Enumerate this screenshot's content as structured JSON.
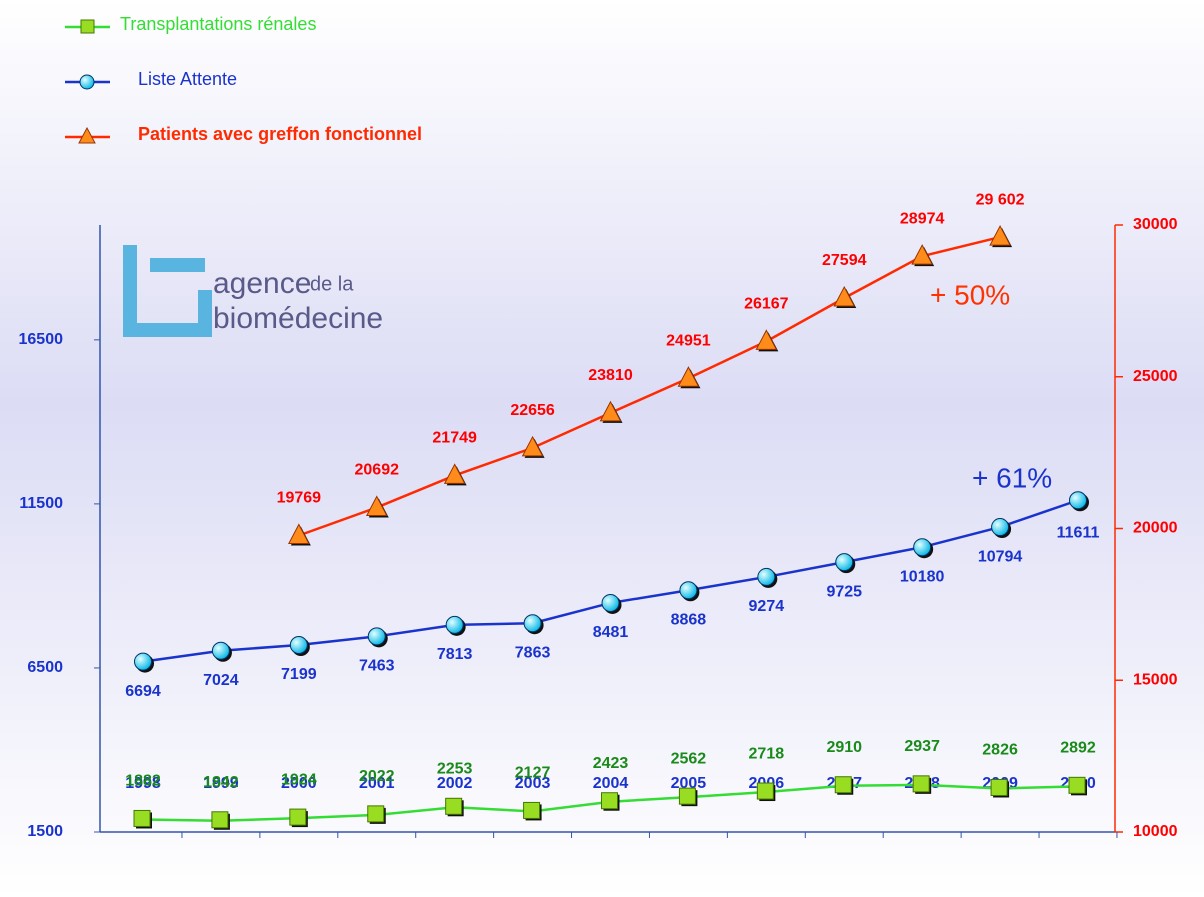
{
  "chart_data": {
    "type": "line",
    "categories": [
      "1998",
      "1999",
      "2000",
      "2001",
      "2002",
      "2003",
      "2004",
      "2005",
      "2006",
      "2007",
      "2008",
      "2009",
      "2010"
    ],
    "series": [
      {
        "name": "Transplantations rénales",
        "color": "#33dd33",
        "marker": "square",
        "label_color": "#1a8a1a",
        "values": [
          1882,
          1842,
          1924,
          2022,
          2253,
          2127,
          2423,
          2562,
          2718,
          2910,
          2937,
          2826,
          2892
        ]
      },
      {
        "name": "Liste Attente",
        "color": "#1a33cc",
        "marker": "circle",
        "label_color": "#1a33cc",
        "values": [
          6694,
          7024,
          7199,
          7463,
          7813,
          7863,
          8481,
          8868,
          9274,
          9725,
          10180,
          10794,
          11611
        ]
      },
      {
        "name": "Patients avec greffon fonctionnel",
        "color": "#ff2a00",
        "marker": "triangle",
        "label_color": "#ff0000",
        "axis": "y2",
        "values": [
          null,
          null,
          19769,
          20692,
          21749,
          22656,
          23810,
          24951,
          26167,
          27594,
          28974,
          29602,
          null
        ],
        "value_labels": [
          null,
          null,
          "19769",
          "20692",
          "21749",
          "22656",
          "23810",
          "24951",
          "26167",
          "27594",
          "28974",
          "29 602",
          null
        ]
      }
    ],
    "ylim": [
      1500,
      20000
    ],
    "yticks": [
      1500,
      6500,
      11500,
      16500
    ],
    "y2lim": [
      10000,
      30000
    ],
    "y2ticks": [
      10000,
      15000,
      20000,
      25000,
      30000
    ],
    "legend": "top-left",
    "annotations": [
      "+ 50%",
      "+ 61%"
    ],
    "logo": {
      "line1": "agence",
      "line1b": "de la",
      "line2": "biomédecine"
    }
  }
}
